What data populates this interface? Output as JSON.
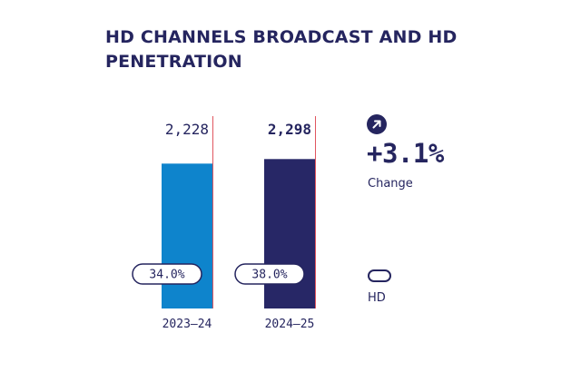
{
  "title": "HD CHANNELS BROADCAST AND HD PENETRATION",
  "colors": {
    "text": "#25255f",
    "bar_2023": "#0e84cc",
    "bar_2024": "#272766",
    "reference_line": "#e0565f"
  },
  "chart_data": {
    "type": "bar",
    "title": "HD CHANNELS BROADCAST AND HD PENETRATION",
    "categories": [
      "2023–24",
      "2024–25"
    ],
    "values": [
      2228,
      2298
    ],
    "value_labels": [
      "2,228",
      "2,298"
    ],
    "penetration": [
      "34.0%",
      "38.0%"
    ],
    "ylim": [
      0,
      2400
    ],
    "grid": false
  },
  "change": {
    "icon": "arrow-up-right-icon",
    "value": "+3.1%",
    "label": "Change"
  },
  "legend": {
    "label": "HD"
  }
}
